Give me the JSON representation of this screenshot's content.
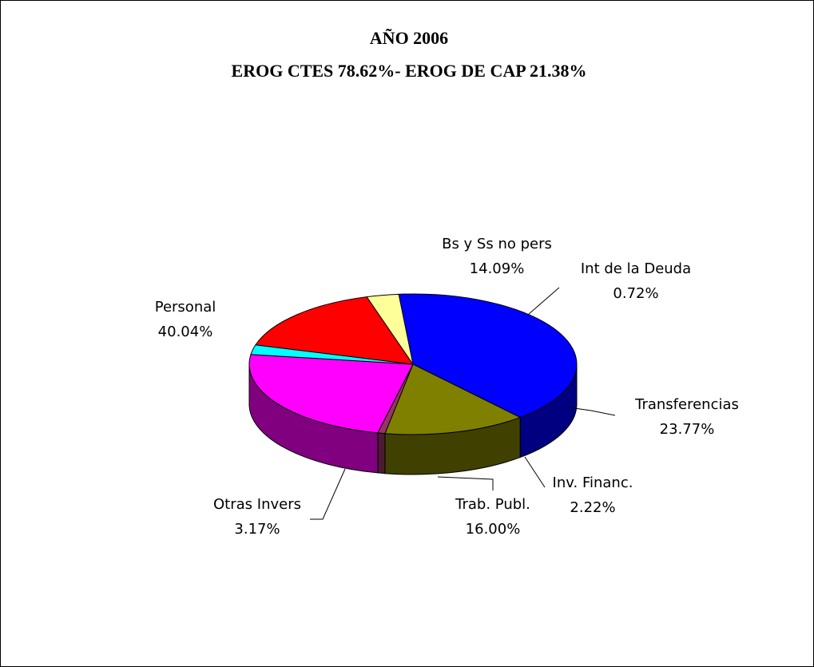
{
  "chart_data": {
    "type": "pie",
    "title": "AÑO 2006",
    "subtitle": "EROG CTES 78.62%- EROG DE CAP 21.38%",
    "categories": [
      "Personal",
      "Bs y Ss no pers",
      "Int de la Deuda",
      "Transferencias",
      "Inv. Financ.",
      "Trab. Publ.",
      "Otras Invers"
    ],
    "values": [
      40.04,
      14.09,
      0.72,
      23.77,
      2.22,
      16.0,
      3.17
    ],
    "value_labels": [
      "40.04%",
      "14.09%",
      "0.72%",
      "23.77%",
      "2.22%",
      "16.00%",
      "3.17%"
    ],
    "colors": [
      "#0000ff",
      "#808000",
      "#993366",
      "#ff00ff",
      "#00ffff",
      "#ff0000",
      "#ffff99"
    ]
  }
}
